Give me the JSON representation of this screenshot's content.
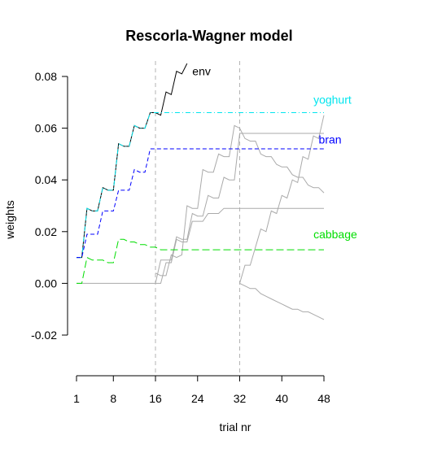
{
  "chart_data": {
    "type": "line",
    "title": "Rescorla-Wagner model",
    "xlabel": "trial nr",
    "ylabel": "weights",
    "xlim": [
      1,
      48
    ],
    "ylim": [
      -0.02,
      0.08
    ],
    "x_ticks": [
      1,
      8,
      16,
      24,
      32,
      40,
      48
    ],
    "y_ticks": [
      -0.02,
      0.0,
      0.02,
      0.04,
      0.06,
      0.08
    ],
    "y_tick_labels": [
      "-0.02",
      "0.00",
      "0.02",
      "0.04",
      "0.06",
      "0.08"
    ],
    "reference_lines_x": [
      16,
      32
    ],
    "series": [
      {
        "name": "env",
        "color": "#000000",
        "dash": "solid",
        "points": [
          [
            1,
            0.01
          ],
          [
            2,
            0.01
          ],
          [
            3,
            0.029
          ],
          [
            4,
            0.028
          ],
          [
            5,
            0.028
          ],
          [
            6,
            0.037
          ],
          [
            7,
            0.036
          ],
          [
            8,
            0.036
          ],
          [
            9,
            0.054
          ],
          [
            10,
            0.053
          ],
          [
            11,
            0.053
          ],
          [
            12,
            0.061
          ],
          [
            13,
            0.06
          ],
          [
            14,
            0.06
          ],
          [
            15,
            0.066
          ],
          [
            16,
            0.066
          ],
          [
            17,
            0.065
          ],
          [
            18,
            0.074
          ],
          [
            19,
            0.073
          ],
          [
            20,
            0.082
          ],
          [
            21,
            0.081
          ],
          [
            22,
            0.085
          ]
        ]
      },
      {
        "name": "yoghurt",
        "color": "#00e5ee",
        "dash": "6,3,1,3",
        "points": [
          [
            1,
            0.01
          ],
          [
            2,
            0.01
          ],
          [
            3,
            0.029
          ],
          [
            4,
            0.028
          ],
          [
            5,
            0.028
          ],
          [
            6,
            0.037
          ],
          [
            7,
            0.036
          ],
          [
            8,
            0.036
          ],
          [
            9,
            0.054
          ],
          [
            10,
            0.053
          ],
          [
            11,
            0.053
          ],
          [
            12,
            0.061
          ],
          [
            13,
            0.06
          ],
          [
            14,
            0.06
          ],
          [
            15,
            0.066
          ],
          [
            16,
            0.066
          ],
          [
            48,
            0.066
          ]
        ]
      },
      {
        "name": "bran",
        "color": "#0000ff",
        "dash": "5,3",
        "points": [
          [
            1,
            0.01
          ],
          [
            2,
            0.01
          ],
          [
            3,
            0.019
          ],
          [
            4,
            0.019
          ],
          [
            5,
            0.019
          ],
          [
            6,
            0.028
          ],
          [
            7,
            0.028
          ],
          [
            8,
            0.028
          ],
          [
            9,
            0.036
          ],
          [
            10,
            0.036
          ],
          [
            11,
            0.036
          ],
          [
            12,
            0.044
          ],
          [
            13,
            0.043
          ],
          [
            14,
            0.043
          ],
          [
            15,
            0.052
          ],
          [
            16,
            0.052
          ],
          [
            48,
            0.052
          ]
        ]
      },
      {
        "name": "cabbage",
        "color": "#00dd00",
        "dash": "9,4",
        "points": [
          [
            1,
            0.0
          ],
          [
            2,
            0.0
          ],
          [
            3,
            0.01
          ],
          [
            4,
            0.009
          ],
          [
            5,
            0.009
          ],
          [
            6,
            0.009
          ],
          [
            7,
            0.008
          ],
          [
            8,
            0.008
          ],
          [
            9,
            0.017
          ],
          [
            10,
            0.017
          ],
          [
            11,
            0.016
          ],
          [
            12,
            0.016
          ],
          [
            13,
            0.015
          ],
          [
            14,
            0.015
          ],
          [
            15,
            0.014
          ],
          [
            16,
            0.014
          ],
          [
            17,
            0.013
          ],
          [
            18,
            0.013
          ],
          [
            48,
            0.013
          ]
        ]
      },
      {
        "color": "#aaaaaa",
        "dash": "solid",
        "points": [
          [
            1,
            0.0
          ],
          [
            16,
            0.0
          ],
          [
            17,
            0.009
          ],
          [
            18,
            0.009
          ],
          [
            19,
            0.009
          ],
          [
            20,
            0.018
          ],
          [
            21,
            0.017
          ],
          [
            22,
            0.017
          ],
          [
            23,
            0.027
          ],
          [
            24,
            0.026
          ],
          [
            25,
            0.026
          ],
          [
            26,
            0.034
          ],
          [
            27,
            0.033
          ],
          [
            28,
            0.033
          ],
          [
            29,
            0.041
          ],
          [
            30,
            0.04
          ],
          [
            31,
            0.04
          ],
          [
            32,
            0.058
          ],
          [
            48,
            0.058
          ]
        ]
      },
      {
        "color": "#aaaaaa",
        "dash": "solid",
        "points": [
          [
            16,
            0.0
          ],
          [
            17,
            0.0
          ],
          [
            18,
            0.008
          ],
          [
            19,
            0.008
          ],
          [
            20,
            0.017
          ],
          [
            21,
            0.016
          ],
          [
            22,
            0.016
          ],
          [
            23,
            0.024
          ],
          [
            24,
            0.024
          ],
          [
            25,
            0.024
          ],
          [
            26,
            0.027
          ],
          [
            27,
            0.027
          ],
          [
            28,
            0.027
          ],
          [
            29,
            0.029
          ],
          [
            30,
            0.029
          ],
          [
            31,
            0.029
          ],
          [
            32,
            0.029
          ],
          [
            48,
            0.029
          ]
        ]
      },
      {
        "color": "#aaaaaa",
        "dash": "solid",
        "points": [
          [
            16,
            0.004
          ],
          [
            17,
            0.003
          ],
          [
            18,
            0.003
          ],
          [
            19,
            0.011
          ],
          [
            20,
            0.01
          ],
          [
            21,
            0.011
          ],
          [
            22,
            0.03
          ],
          [
            23,
            0.029
          ],
          [
            24,
            0.029
          ],
          [
            25,
            0.044
          ],
          [
            26,
            0.043
          ],
          [
            27,
            0.043
          ],
          [
            28,
            0.05
          ],
          [
            29,
            0.049
          ],
          [
            30,
            0.049
          ],
          [
            31,
            0.061
          ],
          [
            32,
            0.06
          ],
          [
            33,
            0.056
          ],
          [
            34,
            0.055
          ],
          [
            35,
            0.055
          ],
          [
            36,
            0.05
          ],
          [
            37,
            0.049
          ],
          [
            38,
            0.049
          ],
          [
            39,
            0.046
          ],
          [
            40,
            0.045
          ],
          [
            41,
            0.045
          ],
          [
            42,
            0.042
          ],
          [
            43,
            0.041
          ],
          [
            44,
            0.041
          ],
          [
            45,
            0.038
          ],
          [
            46,
            0.037
          ],
          [
            47,
            0.037
          ],
          [
            48,
            0.035
          ]
        ]
      },
      {
        "color": "#aaaaaa",
        "dash": "solid",
        "points": [
          [
            32,
            0.0
          ],
          [
            33,
            0.007
          ],
          [
            34,
            0.007
          ],
          [
            35,
            0.014
          ],
          [
            36,
            0.021
          ],
          [
            37,
            0.02
          ],
          [
            38,
            0.028
          ],
          [
            39,
            0.027
          ],
          [
            40,
            0.034
          ],
          [
            41,
            0.033
          ],
          [
            42,
            0.04
          ],
          [
            43,
            0.039
          ],
          [
            44,
            0.049
          ],
          [
            45,
            0.048
          ],
          [
            46,
            0.057
          ],
          [
            47,
            0.056
          ],
          [
            48,
            0.065
          ]
        ]
      },
      {
        "color": "#aaaaaa",
        "dash": "solid",
        "points": [
          [
            32,
            0.0
          ],
          [
            33,
            -0.001
          ],
          [
            34,
            -0.002
          ],
          [
            35,
            -0.002
          ],
          [
            36,
            -0.004
          ],
          [
            37,
            -0.005
          ],
          [
            38,
            -0.006
          ],
          [
            39,
            -0.007
          ],
          [
            40,
            -0.008
          ],
          [
            41,
            -0.009
          ],
          [
            42,
            -0.01
          ],
          [
            43,
            -0.01
          ],
          [
            44,
            -0.011
          ],
          [
            45,
            -0.011
          ],
          [
            46,
            -0.012
          ],
          [
            47,
            -0.013
          ],
          [
            48,
            -0.014
          ]
        ]
      }
    ],
    "series_labels": [
      {
        "text": "env",
        "color": "#000000",
        "x": 23,
        "y": 0.0805
      },
      {
        "text": "yoghurt",
        "color": "#00e5ee",
        "x": 46,
        "y": 0.0695
      },
      {
        "text": "bran",
        "color": "#0000ff",
        "x": 47,
        "y": 0.054
      },
      {
        "text": "cabbage",
        "color": "#00dd00",
        "x": 46,
        "y": 0.0175
      }
    ]
  }
}
